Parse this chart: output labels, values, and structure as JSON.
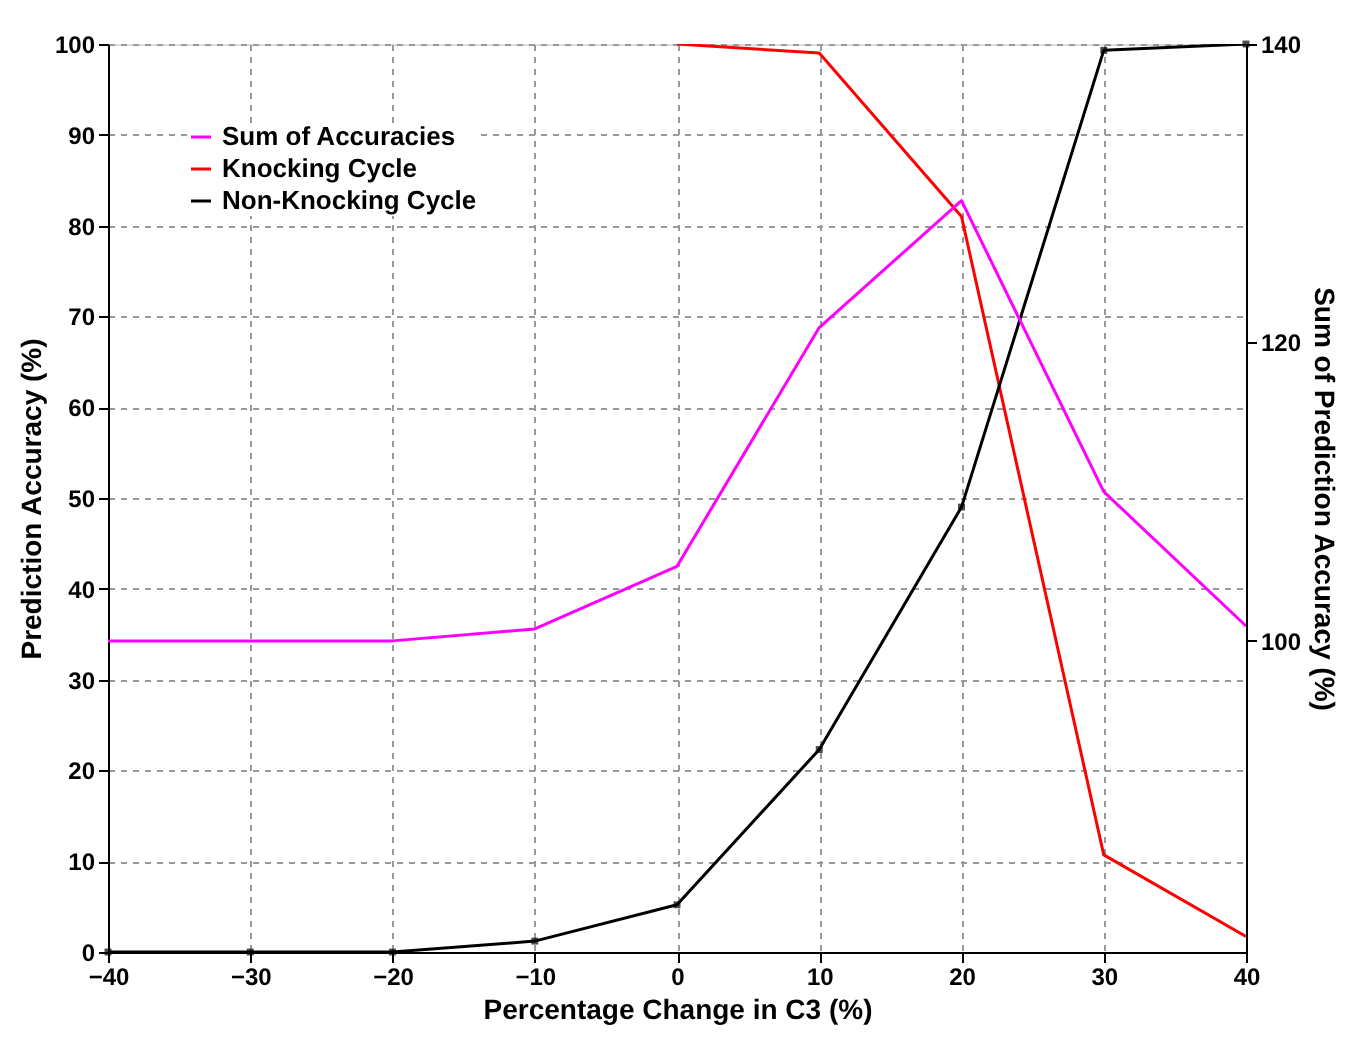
{
  "chart_data": {
    "type": "line",
    "xlabel": "Percentage Change in C3 (%)",
    "ylabel": "Prediction Accuracy (%)",
    "y2label": "Sum of Prediction Accuracy (%)",
    "x": [
      -40,
      -30,
      -20,
      -10,
      0,
      10,
      20,
      30,
      40
    ],
    "series": [
      {
        "name": "Sum of Accuracies",
        "color": "#ff00ff",
        "axis": "y2",
        "marker": "none",
        "values": [
          100,
          100,
          100,
          100.8,
          105,
          121,
          129.5,
          110,
          101
        ]
      },
      {
        "name": "Knocking Cycle",
        "color": "#ff0000",
        "marker": "none",
        "values": [
          null,
          null,
          null,
          null,
          100,
          99,
          81,
          10.7,
          1.7
        ]
      },
      {
        "name": "Non-Knocking Cycle",
        "color": "#000000",
        "marker": "square",
        "values": [
          0,
          0,
          0,
          1.2,
          5.2,
          22.3,
          49,
          99.3,
          100
        ]
      }
    ],
    "xlim": [
      -40,
      40
    ],
    "xticks": [
      -40,
      -30,
      -20,
      -10,
      0,
      10,
      20,
      30,
      40
    ],
    "ylim": [
      0,
      100
    ],
    "yticks": [
      0,
      10,
      20,
      30,
      40,
      50,
      60,
      70,
      80,
      90,
      100
    ],
    "y2lim": [
      79.15,
      140
    ],
    "y2ticks": [
      100,
      120,
      140
    ],
    "grid": true,
    "legend": "top left",
    "line_style": "solid"
  }
}
